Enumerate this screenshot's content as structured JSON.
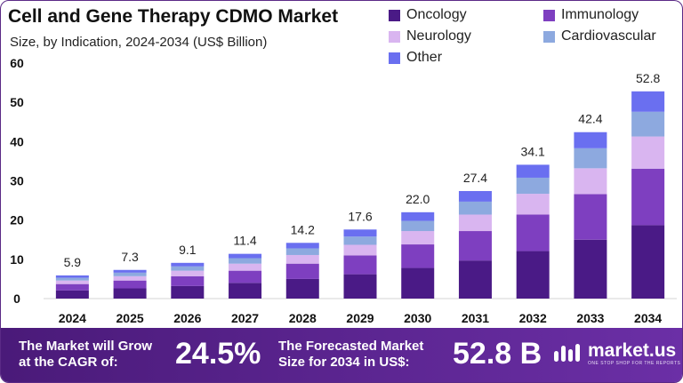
{
  "chart_data": {
    "type": "bar",
    "stacked": true,
    "title": "Cell and Gene Therapy CDMO Market",
    "subtitle": "Size, by Indication, 2024-2034  (US$ Billion)",
    "categories": [
      "2024",
      "2025",
      "2026",
      "2027",
      "2028",
      "2029",
      "2030",
      "2031",
      "2032",
      "2033",
      "2034"
    ],
    "totals": [
      5.9,
      7.3,
      9.1,
      11.4,
      14.2,
      17.6,
      22.0,
      27.4,
      34.1,
      42.4,
      52.8
    ],
    "total_labels": [
      "5.9",
      "7.3",
      "9.1",
      "11.4",
      "14.2",
      "17.6",
      "22.0",
      "27.4",
      "34.1",
      "42.4",
      "52.8"
    ],
    "series": [
      {
        "name": "Oncology",
        "color": "#4a1a86",
        "values": [
          2.1,
          2.6,
          3.2,
          4.0,
          5.0,
          6.2,
          7.8,
          9.7,
          12.1,
          15.0,
          18.7
        ]
      },
      {
        "name": "Immunology",
        "color": "#7e3fc0",
        "values": [
          1.6,
          2.0,
          2.5,
          3.1,
          3.9,
          4.8,
          6.0,
          7.5,
          9.3,
          11.6,
          14.4
        ]
      },
      {
        "name": "Neurology",
        "color": "#d9b5f0",
        "values": [
          0.9,
          1.1,
          1.4,
          1.8,
          2.2,
          2.7,
          3.4,
          4.2,
          5.3,
          6.6,
          8.2
        ]
      },
      {
        "name": "Cardiovascular",
        "color": "#8da9df",
        "values": [
          0.7,
          0.9,
          1.1,
          1.4,
          1.7,
          2.1,
          2.6,
          3.3,
          4.1,
          5.1,
          6.3
        ]
      },
      {
        "name": "Other",
        "color": "#6a6ff0",
        "values": [
          0.6,
          0.7,
          0.9,
          1.1,
          1.4,
          1.8,
          2.2,
          2.7,
          3.3,
          4.1,
          5.2
        ]
      }
    ],
    "yticks": [
      "0",
      "10",
      "20",
      "30",
      "40",
      "50",
      "60"
    ],
    "ylim": [
      0,
      60
    ],
    "grid": false,
    "legend_position": "top-right"
  },
  "footer": {
    "cagr_label_line1": "The Market will Grow",
    "cagr_label_line2": "at the CAGR of:",
    "cagr_value": "24.5%",
    "forecast_label_line1": "The Forecasted Market",
    "forecast_label_line2": "Size for 2034 in US$:",
    "forecast_value": "52.8 B",
    "brand_name": "market.us",
    "brand_tagline": "ONE STOP SHOP FOR THE REPORTS"
  }
}
